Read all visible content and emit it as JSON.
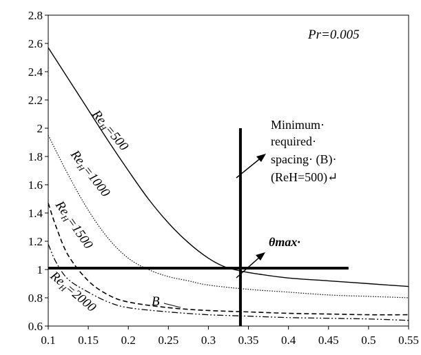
{
  "chart_data": {
    "type": "line",
    "title": "",
    "xlabel": "",
    "ylabel": "",
    "xlim": [
      0.1,
      0.55
    ],
    "ylim": [
      0.6,
      2.8
    ],
    "xticks": [
      "0.1",
      "0.15",
      "0.2",
      "0.25",
      "0.3",
      "0.35",
      "0.4",
      "0.45",
      "0.5",
      "0.55"
    ],
    "yticks": [
      "0.6",
      "0.8",
      "1",
      "1.2",
      "1.4",
      "1.6",
      "1.8",
      "2",
      "2.2",
      "2.4",
      "2.6",
      "2.8"
    ],
    "grid": false,
    "legend": "none",
    "series": [
      {
        "label_main": "Re",
        "label_sub": "H",
        "label_tail": "=500",
        "style": "solid",
        "x": [
          0.1,
          0.125,
          0.15,
          0.175,
          0.2,
          0.225,
          0.25,
          0.275,
          0.3,
          0.32,
          0.34,
          0.36,
          0.4,
          0.45,
          0.5,
          0.55
        ],
        "y": [
          2.57,
          2.35,
          2.13,
          1.91,
          1.7,
          1.5,
          1.33,
          1.19,
          1.08,
          1.02,
          0.99,
          0.97,
          0.94,
          0.92,
          0.9,
          0.88
        ]
      },
      {
        "label_main": "Re",
        "label_sub": "H",
        "label_tail": "=1000",
        "style": "dotted",
        "x": [
          0.1,
          0.125,
          0.15,
          0.175,
          0.2,
          0.225,
          0.25,
          0.275,
          0.3,
          0.35,
          0.4,
          0.45,
          0.5,
          0.55
        ],
        "y": [
          1.95,
          1.67,
          1.42,
          1.22,
          1.08,
          1.0,
          0.95,
          0.92,
          0.89,
          0.86,
          0.84,
          0.82,
          0.81,
          0.8
        ]
      },
      {
        "label_main": "Re",
        "label_sub": "H",
        "label_tail": "=1500",
        "style": "dashed",
        "x": [
          0.1,
          0.11,
          0.125,
          0.15,
          0.175,
          0.2,
          0.25,
          0.3,
          0.35,
          0.4,
          0.45,
          0.5,
          0.55
        ],
        "y": [
          1.47,
          1.3,
          1.1,
          0.92,
          0.82,
          0.77,
          0.73,
          0.71,
          0.7,
          0.69,
          0.685,
          0.68,
          0.68
        ]
      },
      {
        "label_main": "Re",
        "label_sub": "H",
        "label_tail": "=2000",
        "style": "dash-dot-dot",
        "x": [
          0.1,
          0.11,
          0.125,
          0.15,
          0.175,
          0.2,
          0.25,
          0.3,
          0.35,
          0.4,
          0.45,
          0.5,
          0.55
        ],
        "y": [
          1.18,
          1.05,
          0.93,
          0.84,
          0.77,
          0.73,
          0.7,
          0.68,
          0.67,
          0.66,
          0.655,
          0.65,
          0.64
        ]
      }
    ],
    "horizontal_line": {
      "y": 1.01,
      "x_from": 0.1,
      "x_to": 0.475
    },
    "vertical_line": {
      "x": 0.34,
      "y_from": 0.6,
      "y_to": 2.0
    },
    "annotations": {
      "pr": "Pr=0.005",
      "b_marker": "B",
      "theta": "θmax·",
      "spacing_lines": [
        "Minimum·",
        "required·",
        "spacing· (B)·",
        "(ReH=500)↵"
      ]
    }
  }
}
